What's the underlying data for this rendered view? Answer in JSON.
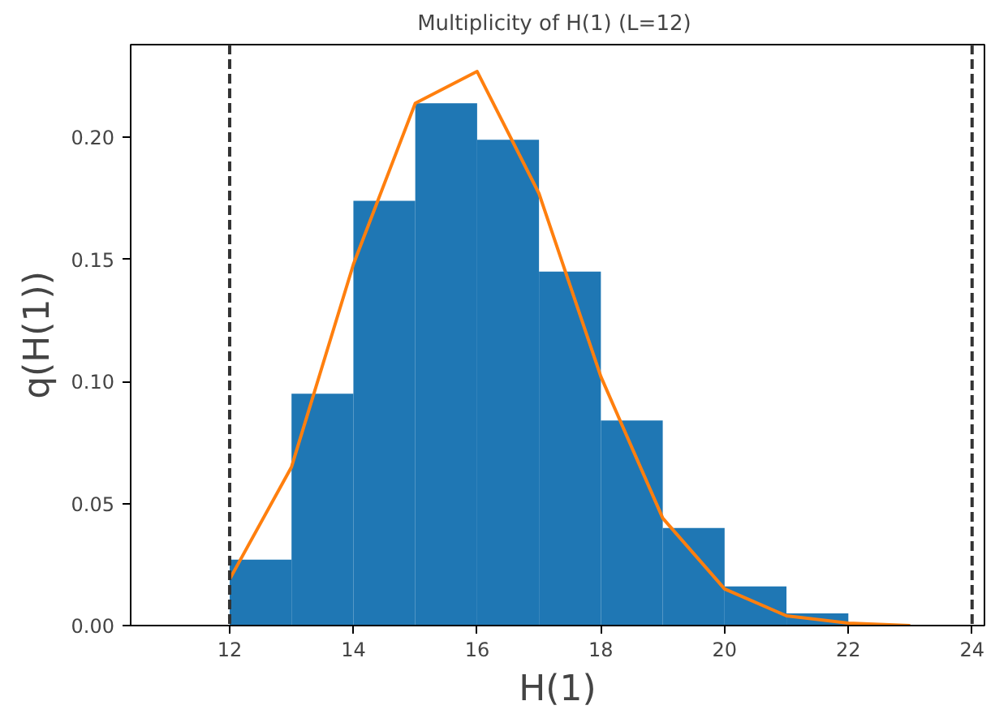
{
  "chart_data": {
    "type": "histogram",
    "title": "Multiplicity of H(1)  (L=12)",
    "xlabel": "H(1)",
    "ylabel": "q(H(1))",
    "bins": [
      12,
      13,
      14,
      15,
      16,
      17,
      18,
      19,
      20,
      21,
      22
    ],
    "values": [
      0.027,
      0.095,
      0.174,
      0.214,
      0.199,
      0.145,
      0.084,
      0.04,
      0.016,
      0.005
    ],
    "color": "#1f77b4",
    "series": [
      {
        "type": "line",
        "color": "#ff7f0e",
        "x": [
          12,
          13,
          14,
          15,
          16,
          17,
          18,
          19,
          20,
          21,
          22,
          23
        ],
        "values": [
          0.019,
          0.065,
          0.148,
          0.214,
          0.227,
          0.177,
          0.102,
          0.044,
          0.015,
          0.004,
          0.001,
          0.0
        ]
      }
    ],
    "ref_lines": [
      {
        "axis": "x",
        "value": 12,
        "color": "#333333",
        "line_style": "dashed"
      },
      {
        "axis": "x",
        "value": 24,
        "color": "#333333",
        "line_style": "dashed"
      }
    ],
    "xlim": [
      10.4,
      24.2
    ],
    "ylim": [
      0,
      0.238
    ],
    "xticks": [
      12,
      14,
      16,
      18,
      20,
      22,
      24
    ],
    "yticks": [
      {
        "value": 0,
        "label": "0.00"
      },
      {
        "value": 0.05,
        "label": "0.05"
      },
      {
        "value": 0.1,
        "label": "0.10"
      },
      {
        "value": 0.15,
        "label": "0.15"
      },
      {
        "value": 0.2,
        "label": "0.20"
      }
    ],
    "grid": false
  }
}
